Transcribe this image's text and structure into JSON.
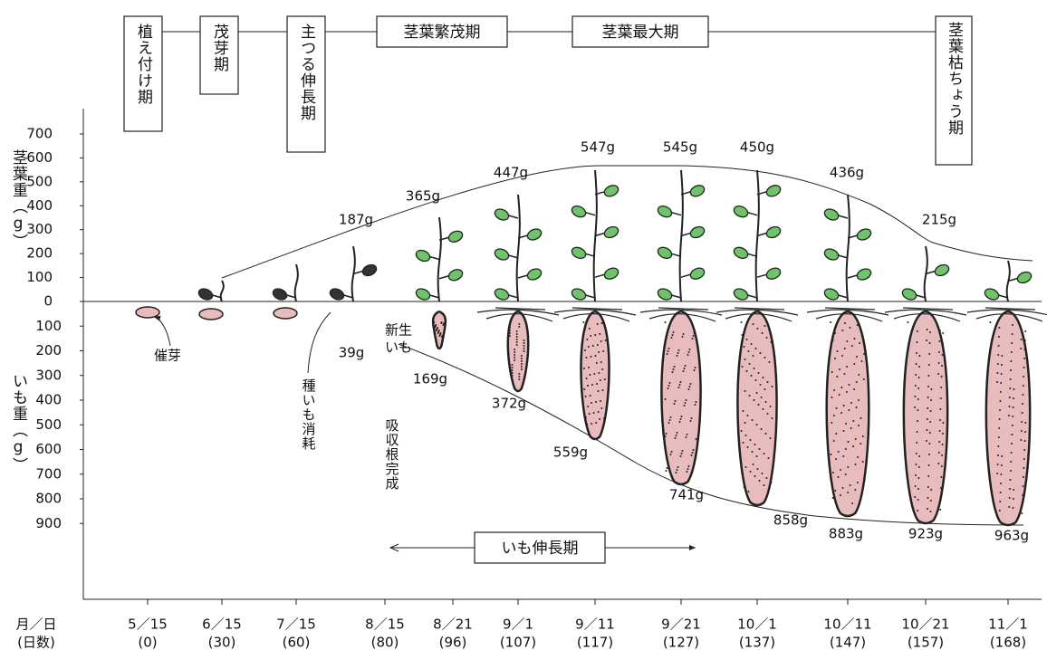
{
  "stages": [
    "植え付け期",
    "茂芽期",
    "主つる伸長期",
    "茎葉繁茂期",
    "茎葉最大期",
    "茎葉枯ちょう期"
  ],
  "y_axis": {
    "upper_label": "茎葉重（g）",
    "lower_label": "いも重（g）",
    "upper_ticks": [
      0,
      100,
      200,
      300,
      400,
      500,
      600,
      700
    ],
    "lower_ticks": [
      100,
      200,
      300,
      400,
      500,
      600,
      700,
      800,
      900
    ]
  },
  "x_axis": {
    "date_label": "月／日",
    "days_label": "(日数)",
    "dates": [
      "5／15",
      "6／15",
      "7／15",
      "8／15",
      "8／21",
      "9／1",
      "9／11",
      "9／21",
      "10／1",
      "10／11",
      "10／21",
      "11／1"
    ],
    "days": [
      "(0)",
      "(30)",
      "(60)",
      "(80)",
      "(96)",
      "(107)",
      "(117)",
      "(127)",
      "(137)",
      "(147)",
      "(157)",
      "(168)"
    ]
  },
  "leaf_weights": [
    "187g",
    "365g",
    "447g",
    "547g",
    "545g",
    "450g",
    "436g",
    "215g"
  ],
  "tuber_weights": [
    "39g",
    "169g",
    "372g",
    "559g",
    "741g",
    "858g",
    "883g",
    "923g",
    "963g"
  ],
  "annotations": {
    "sprouting": "催芽",
    "seed_consumed": "種いも消耗",
    "new_tuber": [
      "新生",
      "いも"
    ],
    "roots_complete": "吸収根完成",
    "tuber_growth": "いも伸長期"
  }
}
